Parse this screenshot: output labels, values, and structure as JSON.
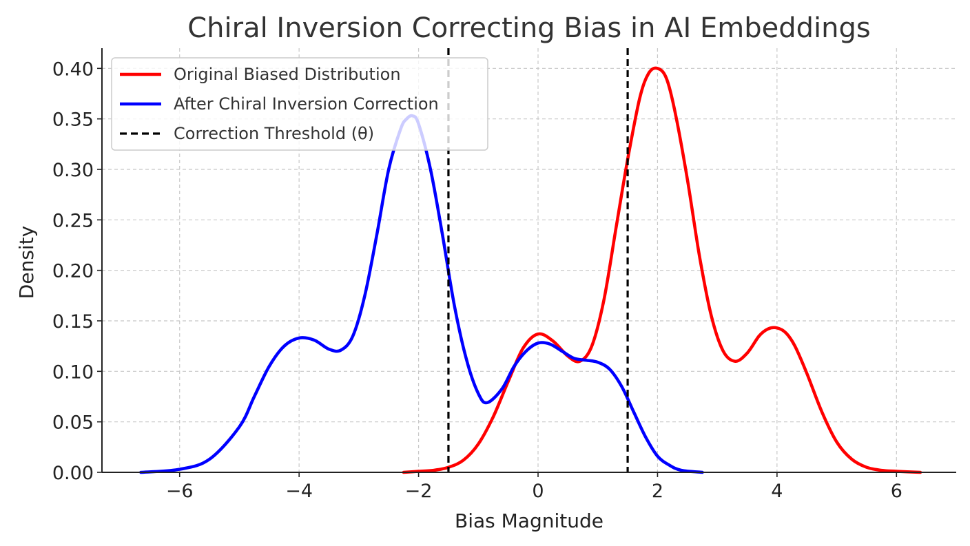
{
  "chart_data": {
    "type": "line",
    "title": "Chiral Inversion Correcting Bias in AI Embeddings",
    "xlabel": "Bias Magnitude",
    "ylabel": "Density",
    "xlim": [
      -7.3,
      7.0
    ],
    "ylim": [
      0,
      0.42
    ],
    "xticks": [
      -6,
      -4,
      -2,
      0,
      2,
      4,
      6
    ],
    "xtick_labels": [
      "−6",
      "−4",
      "−2",
      "0",
      "2",
      "4",
      "6"
    ],
    "yticks": [
      0,
      0.05,
      0.1,
      0.15,
      0.2,
      0.25,
      0.3,
      0.35,
      0.4
    ],
    "ytick_labels": [
      "0.00",
      "0.05",
      "0.10",
      "0.15",
      "0.20",
      "0.25",
      "0.30",
      "0.35",
      "0.40"
    ],
    "grid": true,
    "legend_position": "top-left",
    "series": [
      {
        "name": "Original Biased Distribution",
        "color": "#ff0000",
        "style": "solid",
        "x": [
          -2.25,
          -2.0,
          -1.75,
          -1.5,
          -1.25,
          -1.0,
          -0.75,
          -0.5,
          -0.25,
          0.0,
          0.25,
          0.5,
          0.7,
          0.9,
          1.1,
          1.3,
          1.5,
          1.7,
          1.85,
          2.0,
          2.15,
          2.3,
          2.5,
          2.7,
          2.9,
          3.1,
          3.3,
          3.5,
          3.7,
          3.85,
          4.0,
          4.15,
          4.3,
          4.5,
          4.75,
          5.0,
          5.25,
          5.5,
          5.75,
          6.0,
          6.4
        ],
        "y": [
          0.0,
          0.001,
          0.002,
          0.005,
          0.012,
          0.028,
          0.055,
          0.09,
          0.123,
          0.137,
          0.13,
          0.115,
          0.11,
          0.125,
          0.17,
          0.24,
          0.31,
          0.37,
          0.395,
          0.4,
          0.39,
          0.355,
          0.29,
          0.215,
          0.155,
          0.12,
          0.11,
          0.118,
          0.135,
          0.142,
          0.143,
          0.138,
          0.125,
          0.098,
          0.06,
          0.03,
          0.013,
          0.005,
          0.002,
          0.001,
          0.0
        ]
      },
      {
        "name": "After Chiral Inversion Correction",
        "color": "#0000ff",
        "style": "solid",
        "x": [
          -6.65,
          -6.0,
          -5.5,
          -5.0,
          -4.75,
          -4.5,
          -4.25,
          -4.0,
          -3.75,
          -3.5,
          -3.3,
          -3.1,
          -2.9,
          -2.7,
          -2.5,
          -2.3,
          -2.2,
          -2.1,
          -2.0,
          -1.8,
          -1.6,
          -1.4,
          -1.2,
          -1.0,
          -0.85,
          -0.6,
          -0.4,
          -0.2,
          0.0,
          0.2,
          0.4,
          0.6,
          0.8,
          1.0,
          1.2,
          1.4,
          1.6,
          1.8,
          2.0,
          2.2,
          2.4,
          2.75
        ],
        "y": [
          0.0,
          0.003,
          0.013,
          0.045,
          0.075,
          0.105,
          0.125,
          0.133,
          0.131,
          0.122,
          0.121,
          0.135,
          0.175,
          0.235,
          0.3,
          0.34,
          0.35,
          0.353,
          0.345,
          0.3,
          0.235,
          0.165,
          0.112,
          0.078,
          0.069,
          0.083,
          0.105,
          0.12,
          0.128,
          0.127,
          0.12,
          0.113,
          0.111,
          0.109,
          0.102,
          0.085,
          0.06,
          0.035,
          0.016,
          0.007,
          0.002,
          0.0
        ]
      },
      {
        "name": "Correction Threshold (θ)",
        "color": "#000000",
        "style": "dashed",
        "vlines": [
          -1.5,
          1.5
        ]
      }
    ]
  }
}
